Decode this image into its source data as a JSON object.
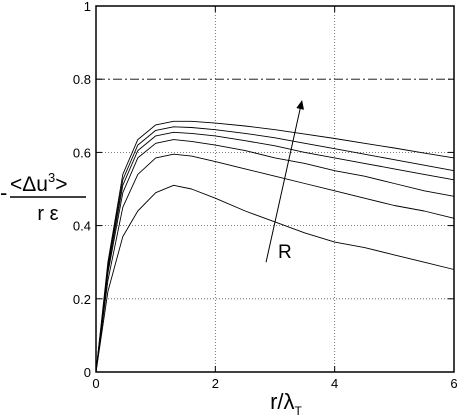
{
  "chart_data": {
    "type": "line",
    "xlabel": "r/λ",
    "xlabel_sub": "T",
    "ylabel_prefix": "-",
    "ylabel_numerator": "<Δu",
    "ylabel_exp": "3",
    "ylabel_numerator_close": ">",
    "ylabel_denominator": "r ε",
    "xlim": [
      0,
      6
    ],
    "ylim": [
      0,
      1
    ],
    "xticks": [
      "0",
      "2",
      "4",
      "6"
    ],
    "yticks": [
      "0",
      "0.2",
      "0.4",
      "0.6",
      "0.8",
      "1"
    ],
    "xtick_values": [
      0,
      2,
      4,
      6
    ],
    "ytick_values": [
      0,
      0.2,
      0.4,
      0.6,
      0.8,
      1
    ],
    "grid": "dotted",
    "reference_line": {
      "y": 0.8,
      "style": "dash-dot"
    },
    "annotation": {
      "text": "R",
      "arrow_from": [
        2.85,
        0.3
      ],
      "arrow_to": [
        3.45,
        0.74
      ]
    },
    "series": [
      {
        "x": [
          0,
          0.2,
          0.45,
          0.7,
          1.0,
          1.3,
          1.6,
          2.0,
          2.5,
          3.0,
          3.5,
          4.0,
          4.5,
          5.0,
          5.5,
          6.0
        ],
        "y": [
          0,
          0.22,
          0.37,
          0.44,
          0.49,
          0.51,
          0.5,
          0.475,
          0.44,
          0.41,
          0.38,
          0.355,
          0.34,
          0.32,
          0.3,
          0.28
        ]
      },
      {
        "x": [
          0,
          0.2,
          0.45,
          0.7,
          1.0,
          1.3,
          1.6,
          2.0,
          2.5,
          3.0,
          3.5,
          4.0,
          4.5,
          5.0,
          5.5,
          6.0
        ],
        "y": [
          0,
          0.25,
          0.45,
          0.54,
          0.585,
          0.595,
          0.59,
          0.575,
          0.555,
          0.535,
          0.515,
          0.495,
          0.475,
          0.455,
          0.44,
          0.42
        ]
      },
      {
        "x": [
          0,
          0.2,
          0.45,
          0.7,
          1.0,
          1.3,
          1.6,
          2.0,
          2.5,
          3.0,
          3.5,
          4.0,
          4.5,
          5.0,
          5.5,
          6.0
        ],
        "y": [
          0,
          0.27,
          0.49,
          0.585,
          0.625,
          0.635,
          0.63,
          0.62,
          0.605,
          0.585,
          0.57,
          0.55,
          0.535,
          0.515,
          0.495,
          0.48
        ]
      },
      {
        "x": [
          0,
          0.2,
          0.45,
          0.7,
          1.0,
          1.3,
          1.6,
          2.0,
          2.5,
          3.0,
          3.5,
          4.0,
          4.5,
          5.0,
          5.5,
          6.0
        ],
        "y": [
          0,
          0.28,
          0.51,
          0.605,
          0.645,
          0.655,
          0.652,
          0.645,
          0.632,
          0.618,
          0.6,
          0.585,
          0.57,
          0.555,
          0.54,
          0.525
        ]
      },
      {
        "x": [
          0,
          0.2,
          0.45,
          0.7,
          1.0,
          1.3,
          1.6,
          2.0,
          2.5,
          3.0,
          3.5,
          4.0,
          4.5,
          5.0,
          5.5,
          6.0
        ],
        "y": [
          0,
          0.29,
          0.525,
          0.62,
          0.66,
          0.67,
          0.668,
          0.662,
          0.652,
          0.64,
          0.625,
          0.61,
          0.595,
          0.58,
          0.565,
          0.55
        ]
      },
      {
        "x": [
          0,
          0.2,
          0.45,
          0.7,
          1.0,
          1.3,
          1.6,
          2.0,
          2.5,
          3.0,
          3.5,
          4.0,
          4.5,
          5.0,
          5.5,
          6.0
        ],
        "y": [
          0,
          0.3,
          0.54,
          0.635,
          0.675,
          0.685,
          0.685,
          0.68,
          0.672,
          0.662,
          0.65,
          0.638,
          0.625,
          0.612,
          0.598,
          0.585
        ]
      }
    ]
  }
}
